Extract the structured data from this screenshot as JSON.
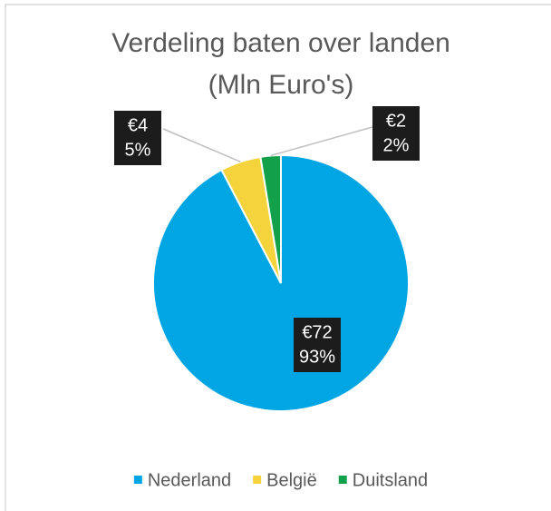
{
  "chart_data": {
    "type": "pie",
    "title": [
      "Verdeling baten over landen",
      "(Mln Euro's)"
    ],
    "categories": [
      "Nederland",
      "België",
      "Duitsland"
    ],
    "values": [
      72,
      4,
      2
    ],
    "value_labels": [
      "€72",
      "€4",
      "€2"
    ],
    "percentages": [
      93,
      5,
      2
    ],
    "percentage_labels": [
      "93%",
      "5%",
      "2%"
    ],
    "colors": [
      "#00a5e3",
      "#f5d33c",
      "#13a04a"
    ],
    "legend": "bottom"
  }
}
